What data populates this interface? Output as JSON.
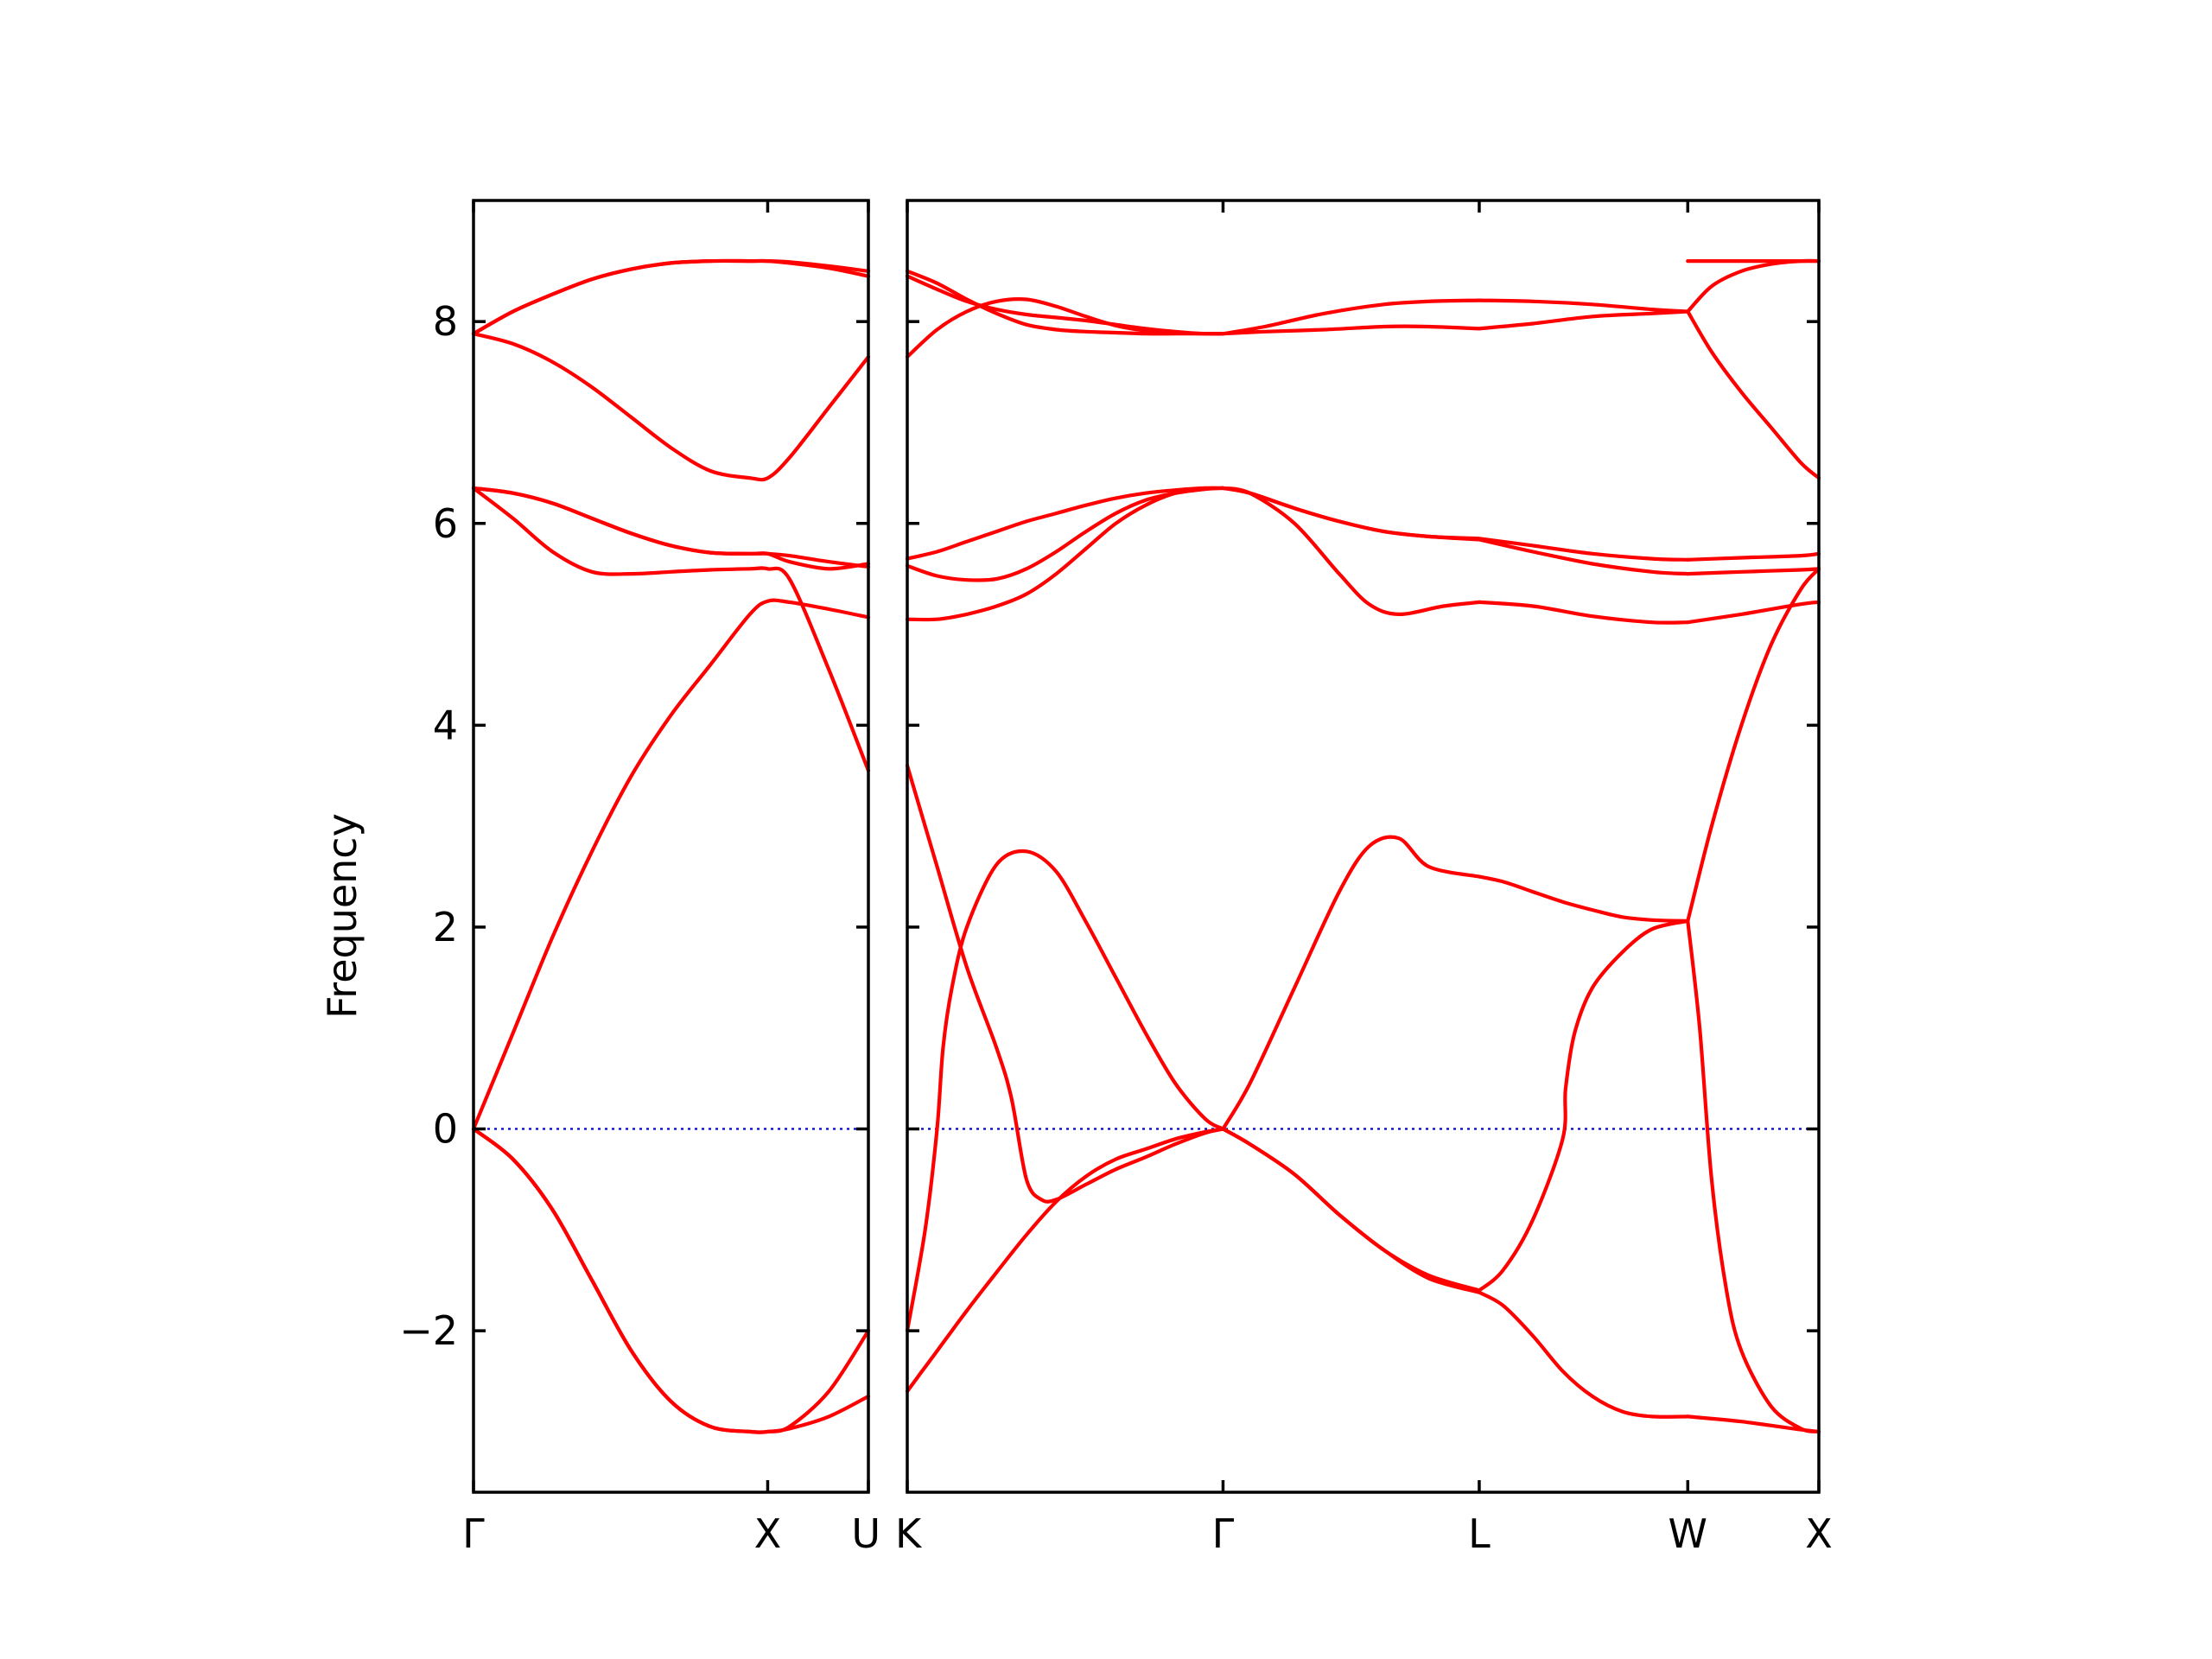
{
  "chart_data": {
    "type": "line",
    "title": "",
    "ylabel": "Frequency",
    "xlabel": "",
    "ylim": [
      -3.6,
      9.2
    ],
    "yticks": [
      -2,
      0,
      2,
      4,
      6,
      8
    ],
    "ytick_labels": [
      "−2",
      "0",
      "2",
      "4",
      "6",
      "8"
    ],
    "grid": false,
    "line_color": "#ff0000",
    "zero_line_color": "#0000cc",
    "panels": [
      {
        "id": "left",
        "xlim": [
          0,
          1.0
        ],
        "ticks": [
          {
            "x": 0,
            "label": "Γ"
          },
          {
            "x": 0.745,
            "label": "X"
          },
          {
            "x": 1.0,
            "label": "U"
          }
        ],
        "bands": [
          {
            "x": [
              0,
              0.1,
              0.2,
              0.3,
              0.4,
              0.5,
              0.6,
              0.7,
              0.745,
              0.8,
              0.9,
              1.0
            ],
            "y": [
              0,
              0.95,
              1.9,
              2.75,
              3.5,
              4.1,
              4.6,
              5.1,
              5.23,
              5.22,
              5.15,
              5.07
            ]
          },
          {
            "x": [
              0,
              0.1,
              0.2,
              0.3,
              0.4,
              0.5,
              0.6,
              0.7,
              0.745,
              0.8,
              0.9,
              1.0
            ],
            "y": [
              0,
              -0.3,
              -0.8,
              -1.5,
              -2.2,
              -2.7,
              -2.95,
              -3.0,
              -3.0,
              -2.97,
              -2.85,
              -2.65
            ]
          },
          {
            "x": [
              0,
              0.1,
              0.2,
              0.3,
              0.4,
              0.5,
              0.6,
              0.7,
              0.745,
              0.8,
              0.9,
              1.0
            ],
            "y": [
              0,
              -0.3,
              -0.8,
              -1.5,
              -2.2,
              -2.7,
              -2.95,
              -3.0,
              -3.0,
              -2.95,
              -2.6,
              -2.0
            ]
          },
          {
            "x": [
              0,
              0.1,
              0.2,
              0.3,
              0.4,
              0.5,
              0.6,
              0.7,
              0.745,
              0.8,
              0.9,
              1.0
            ],
            "y": [
              6.35,
              6.05,
              5.72,
              5.52,
              5.5,
              5.52,
              5.54,
              5.55,
              5.55,
              5.45,
              4.55,
              3.55
            ]
          },
          {
            "x": [
              0,
              0.1,
              0.2,
              0.3,
              0.4,
              0.5,
              0.6,
              0.7,
              0.745,
              0.8,
              0.9,
              1.0
            ],
            "y": [
              6.35,
              6.3,
              6.2,
              6.05,
              5.9,
              5.78,
              5.71,
              5.7,
              5.7,
              5.68,
              5.62,
              5.57
            ]
          },
          {
            "x": [
              0,
              0.1,
              0.2,
              0.3,
              0.4,
              0.5,
              0.6,
              0.7,
              0.745,
              0.8,
              0.9,
              1.0
            ],
            "y": [
              6.35,
              6.3,
              6.2,
              6.05,
              5.9,
              5.78,
              5.71,
              5.7,
              5.7,
              5.62,
              5.55,
              5.6
            ]
          },
          {
            "x": [
              0,
              0.1,
              0.2,
              0.3,
              0.4,
              0.5,
              0.6,
              0.7,
              0.745,
              0.8,
              0.9,
              1.0
            ],
            "y": [
              7.88,
              7.78,
              7.6,
              7.35,
              7.05,
              6.75,
              6.52,
              6.45,
              6.45,
              6.65,
              7.15,
              7.65
            ]
          },
          {
            "x": [
              0,
              0.1,
              0.2,
              0.3,
              0.4,
              0.5,
              0.6,
              0.7,
              0.745,
              0.8,
              0.9,
              1.0
            ],
            "y": [
              7.88,
              8.1,
              8.27,
              8.42,
              8.52,
              8.58,
              8.6,
              8.6,
              8.6,
              8.59,
              8.55,
              8.5
            ]
          },
          {
            "x": [
              0,
              0.1,
              0.2,
              0.3,
              0.4,
              0.5,
              0.6,
              0.7,
              0.745,
              0.8,
              0.9,
              1.0
            ],
            "y": [
              7.88,
              8.1,
              8.27,
              8.42,
              8.52,
              8.58,
              8.6,
              8.6,
              8.6,
              8.58,
              8.53,
              8.45
            ]
          }
        ]
      },
      {
        "id": "right",
        "xlim": [
          0,
          3.06
        ],
        "ticks": [
          {
            "x": 0,
            "label": "K"
          },
          {
            "x": 1.06,
            "label": "Γ"
          },
          {
            "x": 1.92,
            "label": "L"
          },
          {
            "x": 2.62,
            "label": "W"
          },
          {
            "x": 3.06,
            "label": "X"
          }
        ],
        "bands": [
          {
            "x": [
              0,
              0.05,
              0.1,
              0.15,
              0.2,
              0.3,
              0.4,
              0.5,
              0.6,
              0.7,
              0.8,
              0.9,
              1.0,
              1.06
            ],
            "y": [
              -2.6,
              -2.4,
              -2.2,
              -2.0,
              -1.8,
              -1.42,
              -1.05,
              -0.72,
              -0.47,
              -0.3,
              -0.2,
              -0.1,
              -0.03,
              0.0
            ]
          },
          {
            "x": [
              0,
              0.06,
              0.1,
              0.12,
              0.15,
              0.2,
              0.3,
              0.4,
              0.5,
              0.6,
              0.7,
              0.8,
              0.9,
              1.0,
              1.06
            ],
            "y": [
              -2.0,
              -1.0,
              0.0,
              0.8,
              1.4,
              2.0,
              2.62,
              2.75,
              2.55,
              2.05,
              1.5,
              0.95,
              0.45,
              0.1,
              0.0
            ]
          },
          {
            "x": [
              0,
              0.1,
              0.2,
              0.3,
              0.35,
              0.4,
              0.45,
              0.5,
              0.6,
              0.7,
              0.8,
              0.9,
              1.0,
              1.06
            ],
            "y": [
              3.6,
              2.6,
              1.6,
              0.8,
              0.3,
              -0.5,
              -0.7,
              -0.7,
              -0.55,
              -0.4,
              -0.28,
              -0.15,
              -0.04,
              0.0
            ]
          },
          {
            "x": [
              0,
              0.1,
              0.2,
              0.3,
              0.4,
              0.5,
              0.6,
              0.7,
              0.8,
              0.9,
              1.0,
              1.06
            ],
            "y": [
              5.65,
              5.72,
              5.82,
              5.92,
              6.02,
              6.1,
              6.18,
              6.25,
              6.3,
              6.33,
              6.35,
              6.35
            ]
          },
          {
            "x": [
              0,
              0.1,
              0.2,
              0.3,
              0.4,
              0.5,
              0.6,
              0.7,
              0.8,
              0.9,
              1.0,
              1.06
            ],
            "y": [
              5.58,
              5.48,
              5.44,
              5.45,
              5.55,
              5.72,
              5.92,
              6.1,
              6.23,
              6.3,
              6.34,
              6.35
            ]
          },
          {
            "x": [
              0,
              0.1,
              0.2,
              0.3,
              0.4,
              0.5,
              0.6,
              0.7,
              0.8,
              0.9,
              1.0,
              1.06
            ],
            "y": [
              5.05,
              5.05,
              5.1,
              5.18,
              5.3,
              5.5,
              5.75,
              6.0,
              6.18,
              6.3,
              6.34,
              6.35
            ]
          },
          {
            "x": [
              0,
              0.1,
              0.2,
              0.3,
              0.4,
              0.5,
              0.6,
              0.7,
              0.8,
              0.9,
              1.0,
              1.06
            ],
            "y": [
              7.65,
              7.92,
              8.1,
              8.2,
              8.22,
              8.15,
              8.05,
              7.96,
              7.91,
              7.89,
              7.88,
              7.88
            ]
          },
          {
            "x": [
              0,
              0.1,
              0.2,
              0.3,
              0.4,
              0.5,
              0.6,
              0.7,
              0.8,
              0.9,
              1.0,
              1.06
            ],
            "y": [
              8.45,
              8.32,
              8.2,
              8.12,
              8.07,
              8.04,
              8.01,
              7.97,
              7.93,
              7.9,
              7.88,
              7.88
            ]
          },
          {
            "x": [
              0,
              0.1,
              0.2,
              0.3,
              0.4,
              0.5,
              0.6,
              0.7,
              0.8,
              0.9,
              1.0,
              1.06
            ],
            "y": [
              8.5,
              8.38,
              8.22,
              8.08,
              7.97,
              7.92,
              7.9,
              7.89,
              7.88,
              7.88,
              7.88,
              7.88
            ]
          },
          {
            "x": [
              1.06,
              1.15,
              1.3,
              1.45,
              1.55,
              1.65,
              1.75,
              1.92
            ],
            "y": [
              0.0,
              0.45,
              1.4,
              2.35,
              2.8,
              2.88,
              2.6,
              2.5
            ]
          },
          {
            "x": [
              1.06,
              1.15,
              1.3,
              1.45,
              1.6,
              1.75,
              1.92
            ],
            "y": [
              0.0,
              -0.15,
              -0.45,
              -0.85,
              -1.2,
              -1.45,
              -1.6
            ]
          },
          {
            "x": [
              1.06,
              1.15,
              1.3,
              1.45,
              1.6,
              1.75,
              1.92
            ],
            "y": [
              0.0,
              -0.15,
              -0.45,
              -0.85,
              -1.2,
              -1.48,
              -1.62
            ]
          },
          {
            "x": [
              1.06,
              1.15,
              1.3,
              1.45,
              1.55,
              1.65,
              1.8,
              1.92
            ],
            "y": [
              6.35,
              6.3,
              6.0,
              5.5,
              5.2,
              5.1,
              5.18,
              5.22
            ]
          },
          {
            "x": [
              1.06,
              1.15,
              1.3,
              1.45,
              1.6,
              1.75,
              1.92
            ],
            "y": [
              6.35,
              6.3,
              6.15,
              6.02,
              5.92,
              5.87,
              5.85
            ]
          },
          {
            "x": [
              1.06,
              1.15,
              1.3,
              1.45,
              1.6,
              1.75,
              1.92
            ],
            "y": [
              6.35,
              6.3,
              6.15,
              6.02,
              5.92,
              5.87,
              5.84
            ]
          },
          {
            "x": [
              1.06,
              1.2,
              1.4,
              1.6,
              1.75,
              1.92
            ],
            "y": [
              7.88,
              7.9,
              7.92,
              7.95,
              7.95,
              7.93
            ]
          },
          {
            "x": [
              1.06,
              1.2,
              1.4,
              1.6,
              1.75,
              1.92
            ],
            "y": [
              7.88,
              7.95,
              8.08,
              8.17,
              8.2,
              8.21
            ]
          },
          {
            "x": [
              1.92,
              2.0,
              2.1,
              2.2,
              2.3,
              2.4,
              2.5,
              2.62
            ],
            "y": [
              2.5,
              2.45,
              2.35,
              2.25,
              2.17,
              2.1,
              2.07,
              2.06
            ]
          },
          {
            "x": [
              1.92,
              2.0,
              2.1,
              2.2,
              2.21,
              2.24,
              2.3,
              2.4,
              2.5,
              2.62
            ],
            "y": [
              -1.6,
              -1.4,
              -0.9,
              -0.1,
              0.4,
              0.95,
              1.4,
              1.75,
              1.98,
              2.06
            ]
          },
          {
            "x": [
              1.92,
              2.0,
              2.1,
              2.2,
              2.3,
              2.4,
              2.5,
              2.62
            ],
            "y": [
              -1.62,
              -1.75,
              -2.05,
              -2.4,
              -2.65,
              -2.8,
              -2.85,
              -2.85
            ]
          },
          {
            "x": [
              1.92,
              2.1,
              2.3,
              2.5,
              2.62
            ],
            "y": [
              5.22,
              5.18,
              5.08,
              5.02,
              5.02
            ]
          },
          {
            "x": [
              1.92,
              2.1,
              2.3,
              2.5,
              2.62
            ],
            "y": [
              5.85,
              5.78,
              5.7,
              5.65,
              5.64
            ]
          },
          {
            "x": [
              1.92,
              2.1,
              2.3,
              2.5,
              2.62
            ],
            "y": [
              5.84,
              5.72,
              5.6,
              5.52,
              5.5
            ]
          },
          {
            "x": [
              1.92,
              2.1,
              2.3,
              2.5,
              2.62
            ],
            "y": [
              7.93,
              7.98,
              8.05,
              8.08,
              8.1
            ]
          },
          {
            "x": [
              1.92,
              2.1,
              2.3,
              2.5,
              2.62
            ],
            "y": [
              8.21,
              8.2,
              8.17,
              8.12,
              8.1
            ]
          },
          {
            "x": [
              2.62,
              2.7,
              2.8,
              2.9,
              3.0,
              3.06
            ],
            "y": [
              2.06,
              3.0,
              4.0,
              4.8,
              5.35,
              5.55
            ]
          },
          {
            "x": [
              2.62,
              2.66,
              2.7,
              2.75,
              2.8,
              2.9,
              3.0,
              3.06
            ],
            "y": [
              2.06,
              1.0,
              -0.5,
              -1.6,
              -2.2,
              -2.75,
              -2.97,
              -3.0
            ]
          },
          {
            "x": [
              2.62,
              2.8,
              3.0,
              3.06
            ],
            "y": [
              -2.85,
              -2.9,
              -2.98,
              -3.0
            ]
          },
          {
            "x": [
              2.62,
              2.8,
              3.0,
              3.06
            ],
            "y": [
              5.02,
              5.1,
              5.2,
              5.22
            ]
          },
          {
            "x": [
              2.62,
              2.8,
              3.0,
              3.06
            ],
            "y": [
              5.64,
              5.66,
              5.68,
              5.7
            ]
          },
          {
            "x": [
              2.62,
              2.8,
              3.0,
              3.06
            ],
            "y": [
              5.5,
              5.52,
              5.54,
              5.55
            ]
          },
          {
            "x": [
              2.62,
              2.7,
              2.8,
              2.9,
              3.0,
              3.06
            ],
            "y": [
              8.1,
              7.7,
              7.3,
              6.95,
              6.6,
              6.45
            ]
          },
          {
            "x": [
              2.62,
              2.7,
              2.8,
              2.9,
              3.0,
              3.06
            ],
            "y": [
              8.1,
              8.35,
              8.5,
              8.57,
              8.6,
              8.6
            ]
          },
          {
            "x": [
              2.62,
              2.8,
              3.06
            ],
            "y": [
              8.6,
              8.6,
              8.6
            ]
          }
        ]
      }
    ]
  }
}
